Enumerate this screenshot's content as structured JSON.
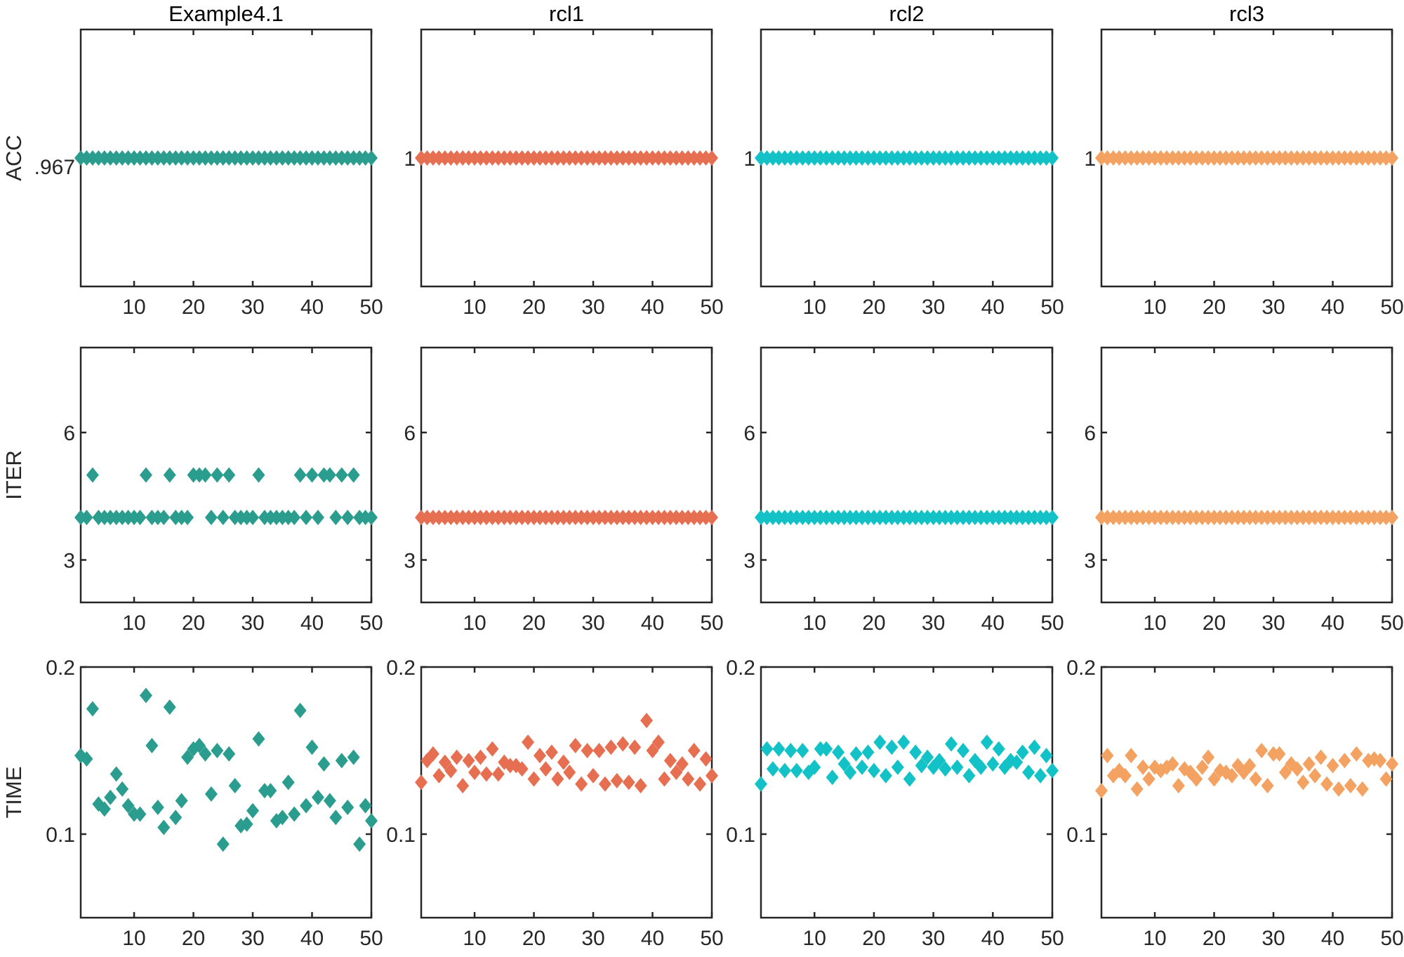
{
  "figure": {
    "column_titles": [
      "Example4.1",
      "rcl1",
      "rcl2",
      "rcl3"
    ],
    "row_labels": [
      "ACC",
      "ITER",
      "TIME"
    ],
    "colors": [
      "#2a9d8f",
      "#e76f51",
      "#13c2c6",
      "#f4a261"
    ],
    "marker": "diamond"
  },
  "chart_data": [
    {
      "type": "scatter",
      "row": 0,
      "col": 0,
      "title": "Example4.1",
      "ylabel": "ACC",
      "xlim": [
        1,
        50
      ],
      "xticks": [
        10,
        20,
        30,
        40,
        50
      ],
      "xtick_labels": [
        "10",
        "20",
        "30",
        "40",
        "50"
      ],
      "ylim": [
        0.917,
        1.017
      ],
      "yticks": [
        0.967
      ],
      "ytick_labels": [
        ".967"
      ],
      "color": "#2a9d8f",
      "y": [
        0.967,
        0.967,
        0.967,
        0.967,
        0.967,
        0.967,
        0.967,
        0.967,
        0.967,
        0.967,
        0.967,
        0.967,
        0.967,
        0.967,
        0.967,
        0.967,
        0.967,
        0.967,
        0.967,
        0.967,
        0.967,
        0.967,
        0.967,
        0.967,
        0.967,
        0.967,
        0.967,
        0.967,
        0.967,
        0.967,
        0.967,
        0.967,
        0.967,
        0.967,
        0.967,
        0.967,
        0.967,
        0.967,
        0.967,
        0.967,
        0.967,
        0.967,
        0.967,
        0.967,
        0.967,
        0.967,
        0.967,
        0.967,
        0.967,
        0.967
      ]
    },
    {
      "type": "scatter",
      "row": 0,
      "col": 1,
      "title": "rcl1",
      "ylabel": "",
      "xlim": [
        1,
        50
      ],
      "xticks": [
        10,
        20,
        30,
        40,
        50
      ],
      "xtick_labels": [
        "10",
        "20",
        "30",
        "40",
        "50"
      ],
      "ylim": [
        0.95,
        1.05
      ],
      "yticks": [
        1
      ],
      "ytick_labels": [
        "1"
      ],
      "color": "#e76f51",
      "y": [
        1,
        1,
        1,
        1,
        1,
        1,
        1,
        1,
        1,
        1,
        1,
        1,
        1,
        1,
        1,
        1,
        1,
        1,
        1,
        1,
        1,
        1,
        1,
        1,
        1,
        1,
        1,
        1,
        1,
        1,
        1,
        1,
        1,
        1,
        1,
        1,
        1,
        1,
        1,
        1,
        1,
        1,
        1,
        1,
        1,
        1,
        1,
        1,
        1,
        1
      ]
    },
    {
      "type": "scatter",
      "row": 0,
      "col": 2,
      "title": "rcl2",
      "ylabel": "",
      "xlim": [
        1,
        50
      ],
      "xticks": [
        10,
        20,
        30,
        40,
        50
      ],
      "xtick_labels": [
        "10",
        "20",
        "30",
        "40",
        "50"
      ],
      "ylim": [
        0.95,
        1.05
      ],
      "yticks": [
        1
      ],
      "ytick_labels": [
        "1"
      ],
      "color": "#13c2c6",
      "y": [
        1,
        1,
        1,
        1,
        1,
        1,
        1,
        1,
        1,
        1,
        1,
        1,
        1,
        1,
        1,
        1,
        1,
        1,
        1,
        1,
        1,
        1,
        1,
        1,
        1,
        1,
        1,
        1,
        1,
        1,
        1,
        1,
        1,
        1,
        1,
        1,
        1,
        1,
        1,
        1,
        1,
        1,
        1,
        1,
        1,
        1,
        1,
        1,
        1,
        1
      ]
    },
    {
      "type": "scatter",
      "row": 0,
      "col": 3,
      "title": "rcl3",
      "ylabel": "",
      "xlim": [
        1,
        50
      ],
      "xticks": [
        10,
        20,
        30,
        40,
        50
      ],
      "xtick_labels": [
        "10",
        "20",
        "30",
        "40",
        "50"
      ],
      "ylim": [
        0.95,
        1.05
      ],
      "yticks": [
        1
      ],
      "ytick_labels": [
        "1"
      ],
      "color": "#f4a261",
      "y": [
        1,
        1,
        1,
        1,
        1,
        1,
        1,
        1,
        1,
        1,
        1,
        1,
        1,
        1,
        1,
        1,
        1,
        1,
        1,
        1,
        1,
        1,
        1,
        1,
        1,
        1,
        1,
        1,
        1,
        1,
        1,
        1,
        1,
        1,
        1,
        1,
        1,
        1,
        1,
        1,
        1,
        1,
        1,
        1,
        1,
        1,
        1,
        1,
        1,
        1
      ]
    },
    {
      "type": "scatter",
      "row": 1,
      "col": 0,
      "title": "",
      "ylabel": "ITER",
      "xlim": [
        1,
        50
      ],
      "xticks": [
        10,
        20,
        30,
        40,
        50
      ],
      "xtick_labels": [
        "10",
        "20",
        "30",
        "40",
        "50"
      ],
      "ylim": [
        2,
        8
      ],
      "yticks": [
        3,
        6
      ],
      "ytick_labels": [
        "3",
        "6"
      ],
      "color": "#2a9d8f",
      "y": [
        4,
        4,
        5,
        4,
        4,
        4,
        4,
        4,
        4,
        4,
        4,
        5,
        4,
        4,
        4,
        5,
        4,
        4,
        4,
        5,
        5,
        5,
        4,
        5,
        4,
        5,
        4,
        4,
        4,
        4,
        5,
        4,
        4,
        4,
        4,
        4,
        4,
        5,
        4,
        5,
        4,
        5,
        5,
        4,
        5,
        4,
        5,
        4,
        4,
        4
      ]
    },
    {
      "type": "scatter",
      "row": 1,
      "col": 1,
      "title": "",
      "ylabel": "",
      "xlim": [
        1,
        50
      ],
      "xticks": [
        10,
        20,
        30,
        40,
        50
      ],
      "xtick_labels": [
        "10",
        "20",
        "30",
        "40",
        "50"
      ],
      "ylim": [
        2,
        8
      ],
      "yticks": [
        3,
        6
      ],
      "ytick_labels": [
        "3",
        "6"
      ],
      "color": "#e76f51",
      "y": [
        4,
        4,
        4,
        4,
        4,
        4,
        4,
        4,
        4,
        4,
        4,
        4,
        4,
        4,
        4,
        4,
        4,
        4,
        4,
        4,
        4,
        4,
        4,
        4,
        4,
        4,
        4,
        4,
        4,
        4,
        4,
        4,
        4,
        4,
        4,
        4,
        4,
        4,
        4,
        4,
        4,
        4,
        4,
        4,
        4,
        4,
        4,
        4,
        4,
        4
      ]
    },
    {
      "type": "scatter",
      "row": 1,
      "col": 2,
      "title": "",
      "ylabel": "",
      "xlim": [
        1,
        50
      ],
      "xticks": [
        10,
        20,
        30,
        40,
        50
      ],
      "xtick_labels": [
        "10",
        "20",
        "30",
        "40",
        "50"
      ],
      "ylim": [
        2,
        8
      ],
      "yticks": [
        3,
        6
      ],
      "ytick_labels": [
        "3",
        "6"
      ],
      "color": "#13c2c6",
      "y": [
        4,
        4,
        4,
        4,
        4,
        4,
        4,
        4,
        4,
        4,
        4,
        4,
        4,
        4,
        4,
        4,
        4,
        4,
        4,
        4,
        4,
        4,
        4,
        4,
        4,
        4,
        4,
        4,
        4,
        4,
        4,
        4,
        4,
        4,
        4,
        4,
        4,
        4,
        4,
        4,
        4,
        4,
        4,
        4,
        4,
        4,
        4,
        4,
        4,
        4
      ]
    },
    {
      "type": "scatter",
      "row": 1,
      "col": 3,
      "title": "",
      "ylabel": "",
      "xlim": [
        1,
        50
      ],
      "xticks": [
        10,
        20,
        30,
        40,
        50
      ],
      "xtick_labels": [
        "10",
        "20",
        "30",
        "40",
        "50"
      ],
      "ylim": [
        2,
        8
      ],
      "yticks": [
        3,
        6
      ],
      "ytick_labels": [
        "3",
        "6"
      ],
      "color": "#f4a261",
      "y": [
        4,
        4,
        4,
        4,
        4,
        4,
        4,
        4,
        4,
        4,
        4,
        4,
        4,
        4,
        4,
        4,
        4,
        4,
        4,
        4,
        4,
        4,
        4,
        4,
        4,
        4,
        4,
        4,
        4,
        4,
        4,
        4,
        4,
        4,
        4,
        4,
        4,
        4,
        4,
        4,
        4,
        4,
        4,
        4,
        4,
        4,
        4,
        4,
        4,
        4
      ]
    },
    {
      "type": "scatter",
      "row": 2,
      "col": 0,
      "title": "",
      "ylabel": "TIME",
      "xlim": [
        1,
        50
      ],
      "xticks": [
        10,
        20,
        30,
        40,
        50
      ],
      "xtick_labels": [
        "10",
        "20",
        "30",
        "40",
        "50"
      ],
      "ylim": [
        0.05,
        0.2
      ],
      "yticks": [
        0.1,
        0.2
      ],
      "ytick_labels": [
        "0.1",
        "0.2"
      ],
      "color": "#2a9d8f",
      "y": [
        0.147,
        0.145,
        0.175,
        0.118,
        0.115,
        0.122,
        0.136,
        0.127,
        0.117,
        0.112,
        0.112,
        0.183,
        0.153,
        0.116,
        0.104,
        0.176,
        0.11,
        0.12,
        0.146,
        0.151,
        0.153,
        0.148,
        0.124,
        0.15,
        0.094,
        0.148,
        0.129,
        0.105,
        0.106,
        0.114,
        0.157,
        0.126,
        0.126,
        0.108,
        0.11,
        0.131,
        0.112,
        0.174,
        0.117,
        0.152,
        0.122,
        0.142,
        0.12,
        0.11,
        0.144,
        0.116,
        0.146,
        0.094,
        0.117,
        0.108
      ]
    },
    {
      "type": "scatter",
      "row": 2,
      "col": 1,
      "title": "",
      "ylabel": "",
      "xlim": [
        1,
        50
      ],
      "xticks": [
        10,
        20,
        30,
        40,
        50
      ],
      "xtick_labels": [
        "10",
        "20",
        "30",
        "40",
        "50"
      ],
      "ylim": [
        0.05,
        0.2
      ],
      "yticks": [
        0.1,
        0.2
      ],
      "ytick_labels": [
        "0.1",
        "0.2"
      ],
      "color": "#e76f51",
      "y": [
        0.131,
        0.144,
        0.148,
        0.135,
        0.143,
        0.138,
        0.146,
        0.129,
        0.144,
        0.137,
        0.146,
        0.136,
        0.151,
        0.136,
        0.143,
        0.141,
        0.141,
        0.139,
        0.155,
        0.133,
        0.147,
        0.139,
        0.149,
        0.133,
        0.143,
        0.137,
        0.153,
        0.13,
        0.15,
        0.135,
        0.15,
        0.13,
        0.152,
        0.132,
        0.154,
        0.131,
        0.152,
        0.129,
        0.168,
        0.15,
        0.155,
        0.133,
        0.144,
        0.137,
        0.142,
        0.133,
        0.15,
        0.13,
        0.145,
        0.135
      ]
    },
    {
      "type": "scatter",
      "row": 2,
      "col": 2,
      "title": "",
      "ylabel": "",
      "xlim": [
        1,
        50
      ],
      "xticks": [
        10,
        20,
        30,
        40,
        50
      ],
      "xtick_labels": [
        "10",
        "20",
        "30",
        "40",
        "50"
      ],
      "ylim": [
        0.05,
        0.2
      ],
      "yticks": [
        0.1,
        0.2
      ],
      "ytick_labels": [
        "0.1",
        "0.2"
      ],
      "color": "#13c2c6",
      "y": [
        0.13,
        0.151,
        0.139,
        0.151,
        0.138,
        0.15,
        0.138,
        0.15,
        0.137,
        0.14,
        0.151,
        0.151,
        0.134,
        0.149,
        0.142,
        0.137,
        0.148,
        0.14,
        0.149,
        0.138,
        0.155,
        0.135,
        0.152,
        0.14,
        0.155,
        0.133,
        0.149,
        0.141,
        0.146,
        0.14,
        0.144,
        0.139,
        0.154,
        0.14,
        0.15,
        0.135,
        0.144,
        0.14,
        0.155,
        0.142,
        0.151,
        0.14,
        0.144,
        0.143,
        0.149,
        0.137,
        0.152,
        0.135,
        0.147,
        0.138
      ]
    },
    {
      "type": "scatter",
      "row": 2,
      "col": 3,
      "title": "",
      "ylabel": "",
      "xlim": [
        1,
        50
      ],
      "xticks": [
        10,
        20,
        30,
        40,
        50
      ],
      "xtick_labels": [
        "10",
        "20",
        "30",
        "40",
        "50"
      ],
      "ylim": [
        0.05,
        0.2
      ],
      "yticks": [
        0.1,
        0.2
      ],
      "ytick_labels": [
        "0.1",
        "0.2"
      ],
      "color": "#f4a261",
      "y": [
        0.126,
        0.147,
        0.135,
        0.138,
        0.135,
        0.147,
        0.127,
        0.14,
        0.133,
        0.14,
        0.138,
        0.14,
        0.142,
        0.129,
        0.139,
        0.137,
        0.133,
        0.14,
        0.146,
        0.133,
        0.138,
        0.137,
        0.135,
        0.141,
        0.137,
        0.141,
        0.133,
        0.15,
        0.129,
        0.148,
        0.148,
        0.137,
        0.142,
        0.139,
        0.131,
        0.142,
        0.135,
        0.146,
        0.13,
        0.141,
        0.127,
        0.144,
        0.129,
        0.148,
        0.127,
        0.144,
        0.145,
        0.144,
        0.133,
        0.142
      ]
    }
  ]
}
